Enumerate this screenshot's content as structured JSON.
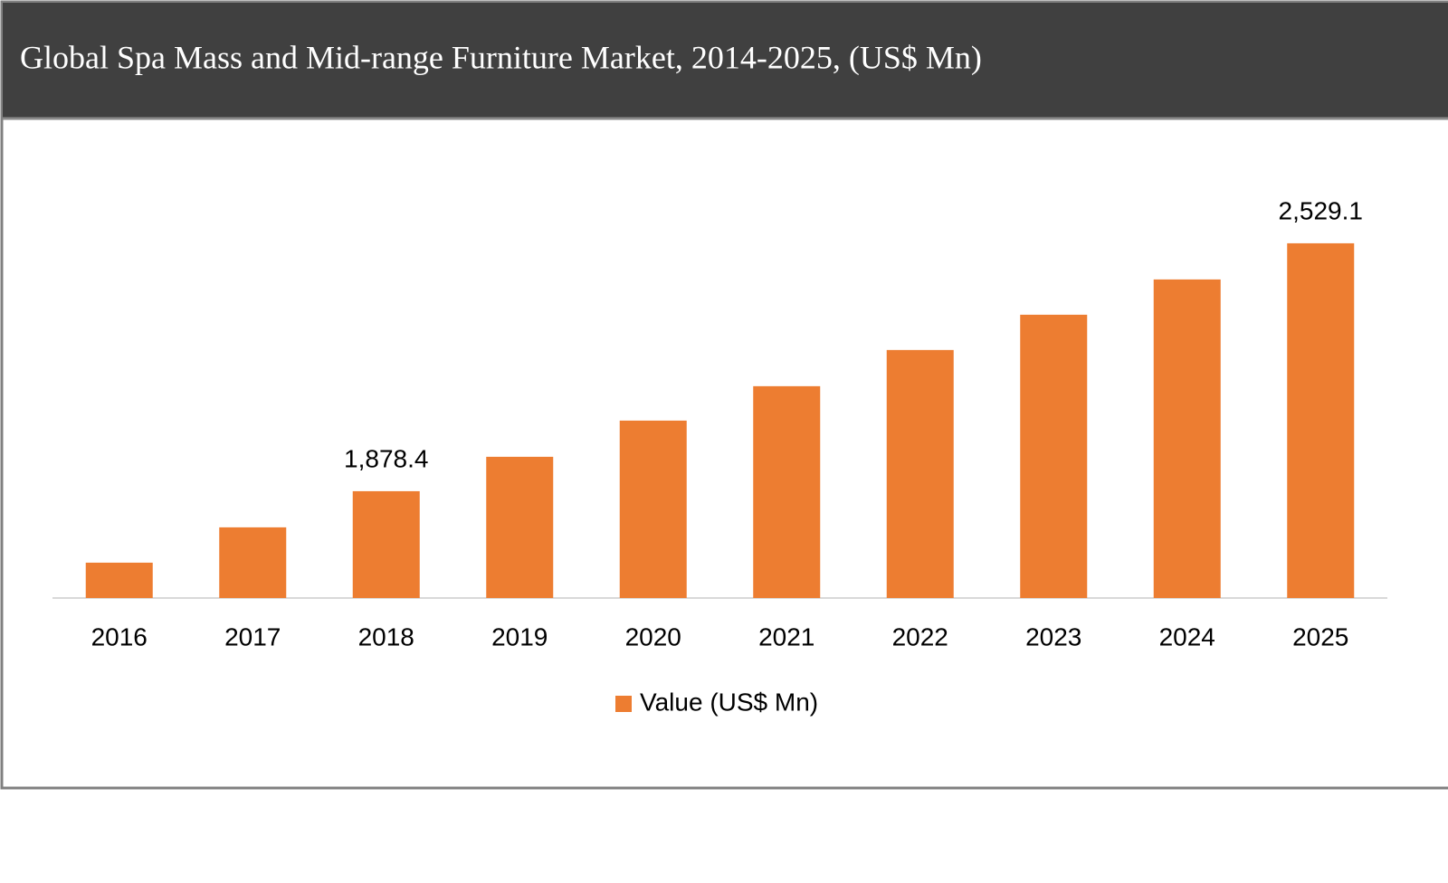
{
  "chart_data": {
    "type": "bar",
    "title": "Global Spa Mass and Mid-range Furniture Market, 2014-2025, (US$ Mn)",
    "categories": [
      "2016",
      "2017",
      "2018",
      "2019",
      "2020",
      "2021",
      "2022",
      "2023",
      "2024",
      "2025"
    ],
    "series": [
      {
        "name": "Value (US$ Mn)",
        "color": "#ed7d31",
        "values": [
          1690.8,
          1783.5,
          1878.4,
          1968.7,
          2063.7,
          2154.0,
          2249.0,
          2341.6,
          2434.2,
          2529.1
        ],
        "value_labels": [
          null,
          null,
          "1,878.4",
          null,
          null,
          null,
          null,
          null,
          null,
          "2,529.1"
        ]
      }
    ],
    "ylim": [
      1598,
      2764
    ],
    "legend": "bottom"
  }
}
